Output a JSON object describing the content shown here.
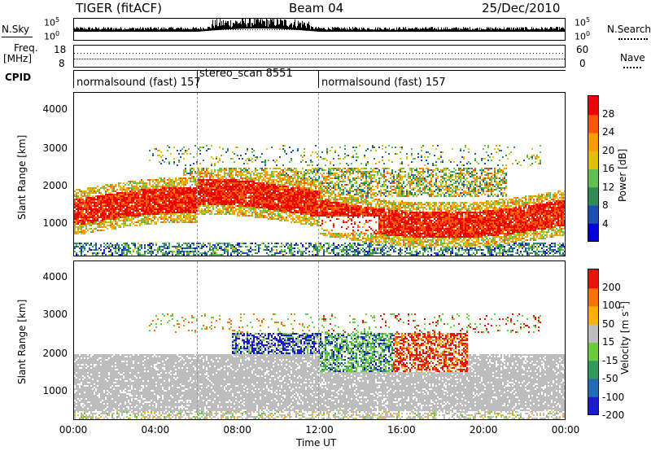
{
  "header": {
    "radar": "TIGER (fitACF)",
    "beam": "Beam 04",
    "date": "25/Dec/2010"
  },
  "left_labels": {
    "nsky": "N.Sky",
    "freq": "Freq.",
    "freq_unit": "[MHz]",
    "cpid": "CPID"
  },
  "right_labels": {
    "nsearch": "N.Search",
    "nave": "Nave"
  },
  "noise_panel": {
    "left_ticks": [
      "10^5",
      "10^0"
    ],
    "right_ticks": [
      "10^5",
      "10^0"
    ]
  },
  "freq_panel": {
    "left_ticks": [
      "18",
      "8"
    ],
    "right_ticks": [
      "60",
      "0"
    ]
  },
  "cpid_segments": [
    {
      "label": "normalsound (fast) 157"
    },
    {
      "label": "stereo_scan 8551"
    },
    {
      "label": "normalsound (fast) 157"
    }
  ],
  "chart_data": [
    {
      "type": "heatmap",
      "quantity": "Power",
      "ylabel": "Slant Range [km]",
      "yticks": [
        "1000",
        "2000",
        "3000",
        "4000"
      ],
      "ylim": [
        200,
        4600
      ],
      "xlim_hours": [
        0,
        24
      ],
      "colorbar_label": "Power [dB]",
      "colorbar_ticks": [
        "4",
        "8",
        "12",
        "16",
        "20",
        "24",
        "28"
      ],
      "colorbar_range": [
        0,
        30
      ],
      "colors": [
        "#0000e0",
        "#1b4fb4",
        "#2e8b57",
        "#5fc04f",
        "#e0c000",
        "#ff9a00",
        "#ff5500",
        "#ee0000"
      ]
    },
    {
      "type": "heatmap",
      "quantity": "Velocity",
      "ylabel": "Slant Range [km]",
      "yticks": [
        "1000",
        "2000",
        "3000",
        "4000"
      ],
      "ylim": [
        200,
        4600
      ],
      "xlim_hours": [
        0,
        24
      ],
      "colorbar_label": "Velocity [m s^-1]",
      "colorbar_ticks": [
        "200",
        "100",
        "50",
        "15",
        "-15",
        "-50",
        "-100",
        "-200"
      ],
      "colorbar_range": [
        -250,
        250
      ],
      "colors": [
        "#1a1ad0",
        "#1f6fb8",
        "#2e9b5c",
        "#68cc3c",
        "#bdbdbd",
        "#ffb000",
        "#ff7000",
        "#ee1000"
      ]
    }
  ],
  "xaxis": {
    "ticks": [
      "00:00",
      "04:00",
      "08:00",
      "12:00",
      "16:00",
      "20:00",
      "00:00"
    ],
    "label": "Time UT"
  }
}
